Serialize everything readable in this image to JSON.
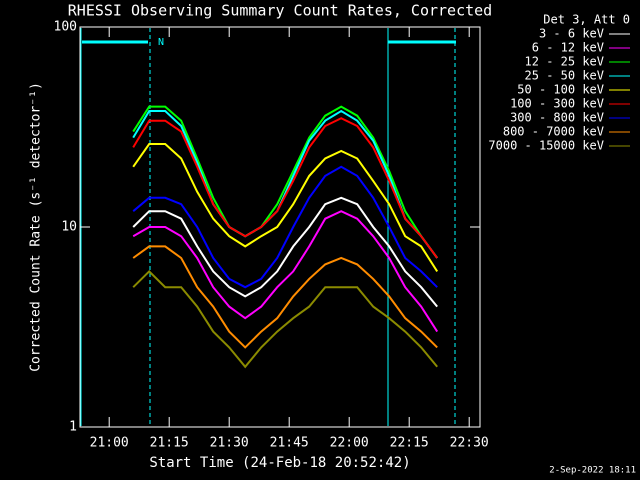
{
  "chart_data": {
    "type": "line",
    "title": "RHESSI Observing Summary Count Rates, Corrected",
    "x_label": "Start Time (24-Feb-18 20:52:42)",
    "y_label": "Corrected Count Rate (s⁻¹ detector⁻¹)",
    "legend_title": "Det 3, Att 0",
    "annotation": "N",
    "timestamp": "2-Sep-2022 18:11",
    "log_y": true,
    "xlim": [
      -7.3,
      92.7
    ],
    "xticks": [
      {
        "value": 0,
        "label": "21:00"
      },
      {
        "value": 15,
        "label": "21:15"
      },
      {
        "value": 30,
        "label": "21:30"
      },
      {
        "value": 45,
        "label": "21:45"
      },
      {
        "value": 60,
        "label": "22:00"
      },
      {
        "value": 75,
        "label": "22:15"
      },
      {
        "value": 90,
        "label": "22:30"
      }
    ],
    "ylim": [
      1,
      100
    ],
    "yticks": [
      1,
      10,
      100
    ],
    "x": [
      6,
      10,
      14,
      18,
      22,
      26,
      30,
      34,
      38,
      42,
      46,
      50,
      54,
      58,
      62,
      66,
      70,
      74,
      78,
      82
    ],
    "series": [
      {
        "name": "3 - 6 keV",
        "color": "#ffffff",
        "values": [
          10,
          12,
          12,
          11,
          8,
          6,
          5,
          4.5,
          5,
          6,
          8,
          10,
          13,
          14,
          13,
          10,
          8,
          6,
          5,
          4
        ]
      },
      {
        "name": "6 - 12 keV",
        "color": "#ff00ff",
        "values": [
          9,
          10,
          10,
          9,
          7,
          5,
          4,
          3.5,
          4,
          5,
          6,
          8,
          11,
          12,
          11,
          9,
          7,
          5,
          4,
          3
        ]
      },
      {
        "name": "12 - 25 keV",
        "color": "#00ff00",
        "values": [
          30,
          40,
          40,
          34,
          22,
          14,
          10,
          9,
          10,
          13,
          19,
          28,
          36,
          40,
          36,
          28,
          19,
          12,
          9,
          7
        ]
      },
      {
        "name": "25 - 50 keV",
        "color": "#00ffff",
        "values": [
          28,
          38,
          38,
          32,
          21,
          13,
          10,
          9,
          10,
          12,
          18,
          27,
          34,
          38,
          34,
          27,
          18,
          11,
          9,
          7
        ]
      },
      {
        "name": "50 - 100 keV",
        "color": "#ffff00",
        "values": [
          20,
          26,
          26,
          22,
          15,
          11,
          9,
          8,
          9,
          10,
          13,
          18,
          22,
          24,
          22,
          17,
          13,
          9,
          8,
          6
        ]
      },
      {
        "name": "100 - 300 keV",
        "color": "#ff0000",
        "values": [
          25,
          34,
          34,
          30,
          20,
          13,
          10,
          9,
          10,
          12,
          17,
          25,
          32,
          35,
          32,
          25,
          17,
          11,
          9,
          7
        ]
      },
      {
        "name": "300 - 800 keV",
        "color": "#0000ff",
        "values": [
          12,
          14,
          14,
          13,
          10,
          7,
          5.5,
          5,
          5.5,
          7,
          10,
          14,
          18,
          20,
          18,
          14,
          10,
          7,
          6,
          5
        ]
      },
      {
        "name": "800 - 7000 keV",
        "color": "#ff8c00",
        "values": [
          7,
          8,
          8,
          7,
          5,
          4,
          3,
          2.5,
          3,
          3.5,
          4.5,
          5.5,
          6.5,
          7,
          6.5,
          5.5,
          4.5,
          3.5,
          3,
          2.5
        ]
      },
      {
        "name": "7000 - 15000 keV",
        "color": "#8b8b00",
        "values": [
          5,
          6,
          5,
          5,
          4,
          3,
          2.5,
          2,
          2.5,
          3,
          3.5,
          4,
          5,
          5,
          5,
          4,
          3.5,
          3,
          2.5,
          2
        ]
      }
    ]
  }
}
